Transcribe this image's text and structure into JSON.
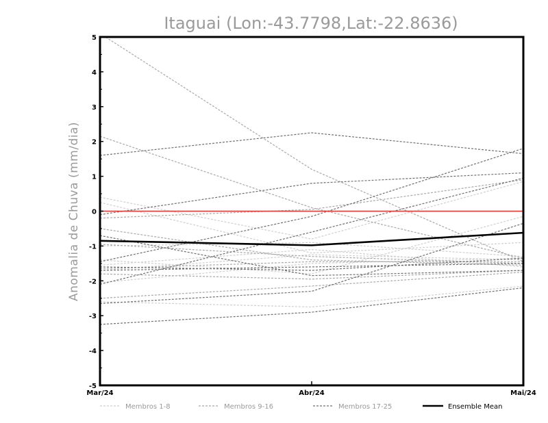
{
  "chart_data": {
    "type": "line",
    "title": "Itaguai (Lon:-43.7798,Lat:-22.8636)",
    "xlabel": "",
    "ylabel": "Anomalia de Chuva (mm/dia)",
    "x": [
      "Mar/24",
      "Abr/24",
      "Mai/24"
    ],
    "ylim": [
      -5,
      5
    ],
    "yticks": [
      -5,
      -4,
      -3,
      -2,
      -1,
      0,
      1,
      2,
      3,
      4,
      5
    ],
    "ytick_labels": [
      "-5",
      "-4",
      "-3",
      "-2",
      "-1",
      "0",
      "1",
      "2",
      "3",
      "4",
      "5"
    ],
    "grid": false,
    "legend_position": "bottom",
    "reference_line": {
      "y": 0,
      "color": "#e8322b"
    },
    "groups": [
      {
        "name": "Membros 1-8",
        "color": "#cfcfcf"
      },
      {
        "name": "Membros 9-16",
        "color": "#a8a8a8"
      },
      {
        "name": "Membros 17-25",
        "color": "#6e6e6e"
      },
      {
        "name": "Ensemble Mean",
        "color": "#000000"
      }
    ],
    "series": [
      {
        "group": 0,
        "values": [
          0.4,
          -0.8,
          0.85
        ]
      },
      {
        "group": 0,
        "values": [
          0.25,
          -1.2,
          -0.9
        ]
      },
      {
        "group": 0,
        "values": [
          -1.4,
          -1.8,
          -0.15
        ]
      },
      {
        "group": 0,
        "values": [
          -1.0,
          -0.9,
          -1.3
        ]
      },
      {
        "group": 0,
        "values": [
          -1.55,
          -1.1,
          -1.6
        ]
      },
      {
        "group": 0,
        "values": [
          -2.05,
          -1.5,
          -1.35
        ]
      },
      {
        "group": 0,
        "values": [
          -1.7,
          -1.25,
          -1.4
        ]
      },
      {
        "group": 0,
        "values": [
          -2.6,
          -2.75,
          -2.15
        ]
      },
      {
        "group": 1,
        "values": [
          5.1,
          1.2,
          -1.45
        ]
      },
      {
        "group": 1,
        "values": [
          2.15,
          0.1,
          -1.35
        ]
      },
      {
        "group": 1,
        "values": [
          -0.2,
          0.05,
          0.9
        ]
      },
      {
        "group": 1,
        "values": [
          -0.5,
          -1.4,
          -1.55
        ]
      },
      {
        "group": 1,
        "values": [
          -0.95,
          -1.3,
          -1.5
        ]
      },
      {
        "group": 1,
        "values": [
          -1.65,
          -1.45,
          -1.45
        ]
      },
      {
        "group": 1,
        "values": [
          -1.8,
          -1.95,
          -1.7
        ]
      },
      {
        "group": 1,
        "values": [
          -2.5,
          -2.15,
          -1.75
        ]
      },
      {
        "group": 2,
        "values": [
          1.6,
          2.25,
          1.65
        ]
      },
      {
        "group": 2,
        "values": [
          -0.1,
          0.8,
          1.1
        ]
      },
      {
        "group": 2,
        "values": [
          -0.7,
          -1.85,
          -1.7
        ]
      },
      {
        "group": 2,
        "values": [
          -1.45,
          -0.15,
          1.8
        ]
      },
      {
        "group": 2,
        "values": [
          -1.7,
          -1.6,
          -1.5
        ]
      },
      {
        "group": 2,
        "values": [
          -2.1,
          -0.6,
          0.95
        ]
      },
      {
        "group": 2,
        "values": [
          -1.6,
          -1.7,
          -1.35
        ]
      },
      {
        "group": 2,
        "values": [
          -2.65,
          -2.3,
          -0.35
        ]
      },
      {
        "group": 2,
        "values": [
          -3.25,
          -2.9,
          -2.2
        ]
      }
    ],
    "mean": {
      "name": "Ensemble Mean",
      "values": [
        -0.85,
        -0.98,
        -0.62
      ]
    }
  }
}
